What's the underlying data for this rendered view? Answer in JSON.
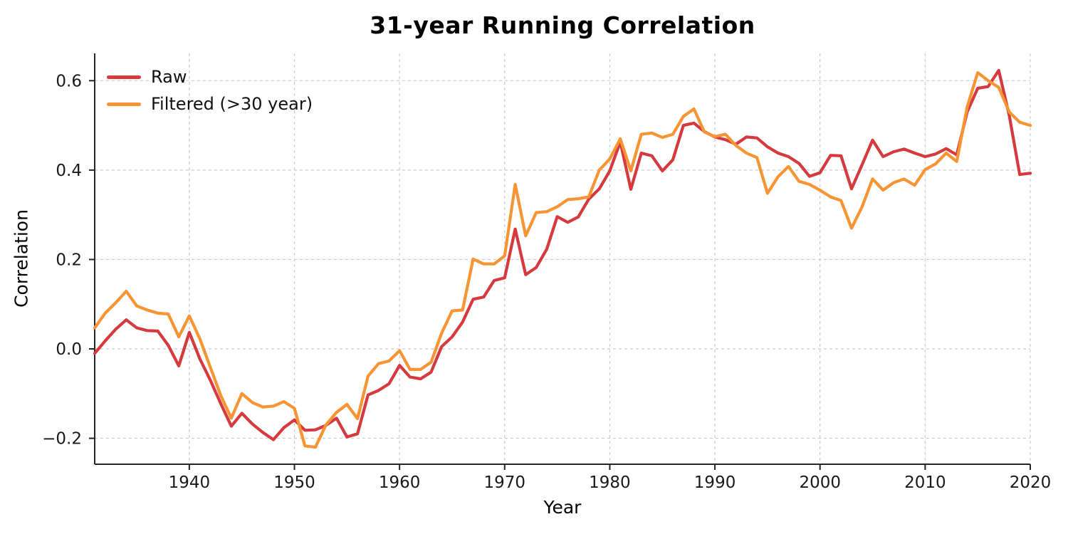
{
  "colors": {
    "grid": "#cbcbcb",
    "spine": "#262626",
    "tick_text": "#1a1a1a",
    "raw_line": "#d53a3e",
    "filtered_line": "#f79433"
  },
  "chart_data": {
    "type": "line",
    "title": "31-year Running Correlation",
    "xlabel": "Year",
    "ylabel": "Correlation",
    "grid": "dashed",
    "legend_position": "upper-left",
    "xlim": [
      1931,
      2020
    ],
    "ylim": [
      -0.258,
      0.661
    ],
    "x_ticks": [
      1940,
      1950,
      1960,
      1970,
      1980,
      1990,
      2000,
      2010,
      2020
    ],
    "y_ticks": [
      {
        "value": -0.2,
        "label": "−0.2"
      },
      {
        "value": 0.0,
        "label": "0.0"
      },
      {
        "value": 0.2,
        "label": "0.2"
      },
      {
        "value": 0.4,
        "label": "0.4"
      },
      {
        "value": 0.6,
        "label": "0.6"
      }
    ],
    "x": [
      1931,
      1932,
      1933,
      1934,
      1935,
      1936,
      1937,
      1938,
      1939,
      1940,
      1941,
      1942,
      1943,
      1944,
      1945,
      1946,
      1947,
      1948,
      1949,
      1950,
      1951,
      1952,
      1953,
      1954,
      1955,
      1956,
      1957,
      1958,
      1959,
      1960,
      1961,
      1962,
      1963,
      1964,
      1965,
      1966,
      1967,
      1968,
      1969,
      1970,
      1971,
      1972,
      1973,
      1974,
      1975,
      1976,
      1977,
      1978,
      1979,
      1980,
      1981,
      1982,
      1983,
      1984,
      1985,
      1986,
      1987,
      1988,
      1989,
      1990,
      1991,
      1992,
      1993,
      1994,
      1995,
      1996,
      1997,
      1998,
      1999,
      2000,
      2001,
      2002,
      2003,
      2004,
      2005,
      2006,
      2007,
      2008,
      2009,
      2010,
      2011,
      2012,
      2013,
      2014,
      2015,
      2016,
      2017,
      2018,
      2019,
      2020
    ],
    "series": [
      {
        "name": "Raw",
        "color": "#d53a3e",
        "values": [
          -0.01,
          0.018,
          0.044,
          0.065,
          0.047,
          0.041,
          0.04,
          0.008,
          -0.038,
          0.037,
          -0.022,
          -0.07,
          -0.123,
          -0.173,
          -0.144,
          -0.168,
          -0.187,
          -0.203,
          -0.176,
          -0.159,
          -0.182,
          -0.181,
          -0.171,
          -0.155,
          -0.197,
          -0.19,
          -0.103,
          -0.093,
          -0.078,
          -0.037,
          -0.063,
          -0.067,
          -0.052,
          0.005,
          0.027,
          0.06,
          0.111,
          0.116,
          0.153,
          0.159,
          0.268,
          0.166,
          0.182,
          0.223,
          0.296,
          0.283,
          0.295,
          0.335,
          0.358,
          0.398,
          0.463,
          0.357,
          0.438,
          0.432,
          0.398,
          0.423,
          0.5,
          0.505,
          0.486,
          0.474,
          0.468,
          0.458,
          0.474,
          0.472,
          0.452,
          0.438,
          0.43,
          0.415,
          0.386,
          0.394,
          0.433,
          0.432,
          0.358,
          0.412,
          0.467,
          0.43,
          0.441,
          0.447,
          0.438,
          0.43,
          0.436,
          0.448,
          0.434,
          0.53,
          0.583,
          0.587,
          0.623,
          0.522,
          0.39,
          0.393
        ]
      },
      {
        "name": "Filtered (>30 year)",
        "color": "#f79433",
        "values": [
          0.047,
          0.08,
          0.103,
          0.129,
          0.096,
          0.087,
          0.08,
          0.078,
          0.027,
          0.074,
          0.023,
          -0.041,
          -0.105,
          -0.155,
          -0.1,
          -0.12,
          -0.13,
          -0.128,
          -0.118,
          -0.133,
          -0.217,
          -0.22,
          -0.17,
          -0.142,
          -0.124,
          -0.156,
          -0.061,
          -0.033,
          -0.027,
          -0.004,
          -0.046,
          -0.046,
          -0.03,
          0.035,
          0.085,
          0.087,
          0.201,
          0.19,
          0.19,
          0.208,
          0.368,
          0.253,
          0.305,
          0.307,
          0.318,
          0.334,
          0.336,
          0.34,
          0.4,
          0.425,
          0.47,
          0.398,
          0.48,
          0.483,
          0.473,
          0.48,
          0.52,
          0.537,
          0.485,
          0.475,
          0.48,
          0.455,
          0.438,
          0.428,
          0.348,
          0.385,
          0.408,
          0.375,
          0.368,
          0.355,
          0.34,
          0.332,
          0.27,
          0.318,
          0.38,
          0.355,
          0.372,
          0.38,
          0.366,
          0.401,
          0.414,
          0.438,
          0.419,
          0.541,
          0.618,
          0.6,
          0.585,
          0.53,
          0.507,
          0.5
        ]
      }
    ]
  }
}
